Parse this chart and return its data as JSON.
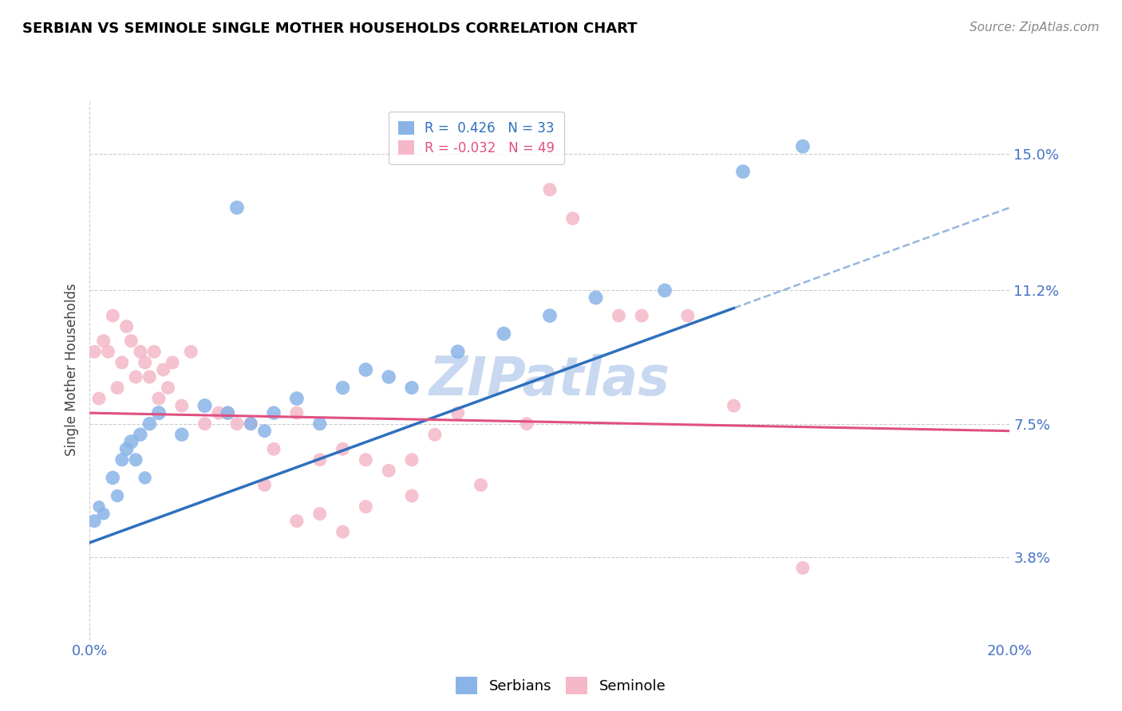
{
  "title": "SERBIAN VS SEMINOLE SINGLE MOTHER HOUSEHOLDS CORRELATION CHART",
  "source": "Source: ZipAtlas.com",
  "xlabel": "",
  "ylabel": "Single Mother Households",
  "xlim": [
    0.0,
    20.0
  ],
  "ylim": [
    1.5,
    16.5
  ],
  "yticks": [
    3.8,
    7.5,
    11.2,
    15.0
  ],
  "xticks": [
    0.0,
    5.0,
    10.0,
    15.0,
    20.0
  ],
  "xtick_labels": [
    "0.0%",
    "",
    "",
    "",
    "20.0%"
  ],
  "ytick_labels": [
    "3.8%",
    "7.5%",
    "11.2%",
    "15.0%"
  ],
  "r_serbian": 0.426,
  "n_serbian": 33,
  "r_seminole": -0.032,
  "n_seminole": 49,
  "serbian_color": "#8ab4e8",
  "seminole_color": "#f4b8c8",
  "serbian_line_color": "#2e6fbd",
  "seminole_line_color": "#e05080",
  "watermark": "ZIPatlas",
  "watermark_color": "#c8d8f0",
  "serbian_points": [
    [
      0.1,
      4.8
    ],
    [
      0.2,
      5.2
    ],
    [
      0.3,
      5.0
    ],
    [
      0.5,
      6.0
    ],
    [
      0.6,
      5.5
    ],
    [
      0.7,
      6.5
    ],
    [
      0.8,
      6.8
    ],
    [
      0.9,
      7.0
    ],
    [
      1.0,
      6.5
    ],
    [
      1.1,
      7.2
    ],
    [
      1.2,
      6.0
    ],
    [
      1.3,
      7.5
    ],
    [
      1.5,
      7.8
    ],
    [
      2.0,
      7.2
    ],
    [
      2.5,
      8.0
    ],
    [
      3.0,
      7.8
    ],
    [
      3.5,
      7.5
    ],
    [
      3.8,
      7.3
    ],
    [
      4.0,
      7.8
    ],
    [
      4.5,
      8.2
    ],
    [
      5.0,
      7.5
    ],
    [
      5.5,
      8.5
    ],
    [
      6.0,
      9.0
    ],
    [
      6.5,
      8.8
    ],
    [
      7.0,
      8.5
    ],
    [
      8.0,
      9.5
    ],
    [
      9.0,
      10.0
    ],
    [
      10.0,
      10.5
    ],
    [
      3.2,
      13.5
    ],
    [
      11.0,
      11.0
    ],
    [
      12.5,
      11.2
    ],
    [
      14.2,
      14.5
    ],
    [
      15.5,
      15.2
    ]
  ],
  "seminole_points": [
    [
      0.1,
      9.5
    ],
    [
      0.2,
      8.2
    ],
    [
      0.3,
      9.8
    ],
    [
      0.4,
      9.5
    ],
    [
      0.5,
      10.5
    ],
    [
      0.6,
      8.5
    ],
    [
      0.7,
      9.2
    ],
    [
      0.8,
      10.2
    ],
    [
      0.9,
      9.8
    ],
    [
      1.0,
      8.8
    ],
    [
      1.1,
      9.5
    ],
    [
      1.2,
      9.2
    ],
    [
      1.3,
      8.8
    ],
    [
      1.4,
      9.5
    ],
    [
      1.5,
      8.2
    ],
    [
      1.6,
      9.0
    ],
    [
      1.7,
      8.5
    ],
    [
      1.8,
      9.2
    ],
    [
      2.0,
      8.0
    ],
    [
      2.2,
      9.5
    ],
    [
      2.5,
      7.5
    ],
    [
      2.8,
      7.8
    ],
    [
      3.0,
      7.8
    ],
    [
      3.2,
      7.5
    ],
    [
      3.5,
      7.5
    ],
    [
      3.8,
      5.8
    ],
    [
      4.0,
      6.8
    ],
    [
      4.5,
      7.8
    ],
    [
      5.0,
      6.5
    ],
    [
      5.5,
      6.8
    ],
    [
      6.0,
      6.5
    ],
    [
      6.5,
      6.2
    ],
    [
      7.0,
      6.5
    ],
    [
      7.5,
      7.2
    ],
    [
      8.0,
      7.8
    ],
    [
      8.5,
      5.8
    ],
    [
      9.5,
      7.5
    ],
    [
      10.0,
      14.0
    ],
    [
      10.5,
      13.2
    ],
    [
      11.5,
      10.5
    ],
    [
      12.0,
      10.5
    ],
    [
      13.0,
      10.5
    ],
    [
      14.0,
      8.0
    ],
    [
      15.5,
      3.5
    ],
    [
      5.0,
      5.0
    ],
    [
      6.0,
      5.2
    ],
    [
      7.0,
      5.5
    ],
    [
      4.5,
      4.8
    ],
    [
      5.5,
      4.5
    ]
  ],
  "serbian_dot_sizes": [
    150,
    120,
    130,
    160,
    140,
    150,
    160,
    170,
    150,
    160,
    140,
    160,
    170,
    160,
    170,
    160,
    150,
    150,
    160,
    165,
    155,
    160,
    165,
    160,
    155,
    165,
    165,
    165,
    165,
    165,
    165,
    165,
    165
  ],
  "seminole_dot_sizes": [
    150,
    150,
    150,
    150,
    150,
    150,
    150,
    150,
    150,
    150,
    150,
    150,
    150,
    150,
    150,
    150,
    150,
    150,
    150,
    150,
    150,
    150,
    150,
    150,
    150,
    150,
    150,
    150,
    150,
    150,
    150,
    150,
    150,
    150,
    150,
    150,
    150,
    150,
    150,
    150,
    150,
    150,
    150,
    150,
    150,
    150,
    150,
    150,
    150
  ],
  "background_color": "#ffffff",
  "grid_color": "#cccccc",
  "title_color": "#000000",
  "tick_label_color": "#4472c4",
  "blue_line_start_x": 0.0,
  "blue_line_end_solid_x": 14.0,
  "blue_line_end_dash_x": 20.0,
  "blue_line_start_y": 4.2,
  "blue_line_end_y": 13.5,
  "pink_line_start_x": 0.0,
  "pink_line_end_x": 20.0,
  "pink_line_start_y": 7.8,
  "pink_line_end_y": 7.3
}
